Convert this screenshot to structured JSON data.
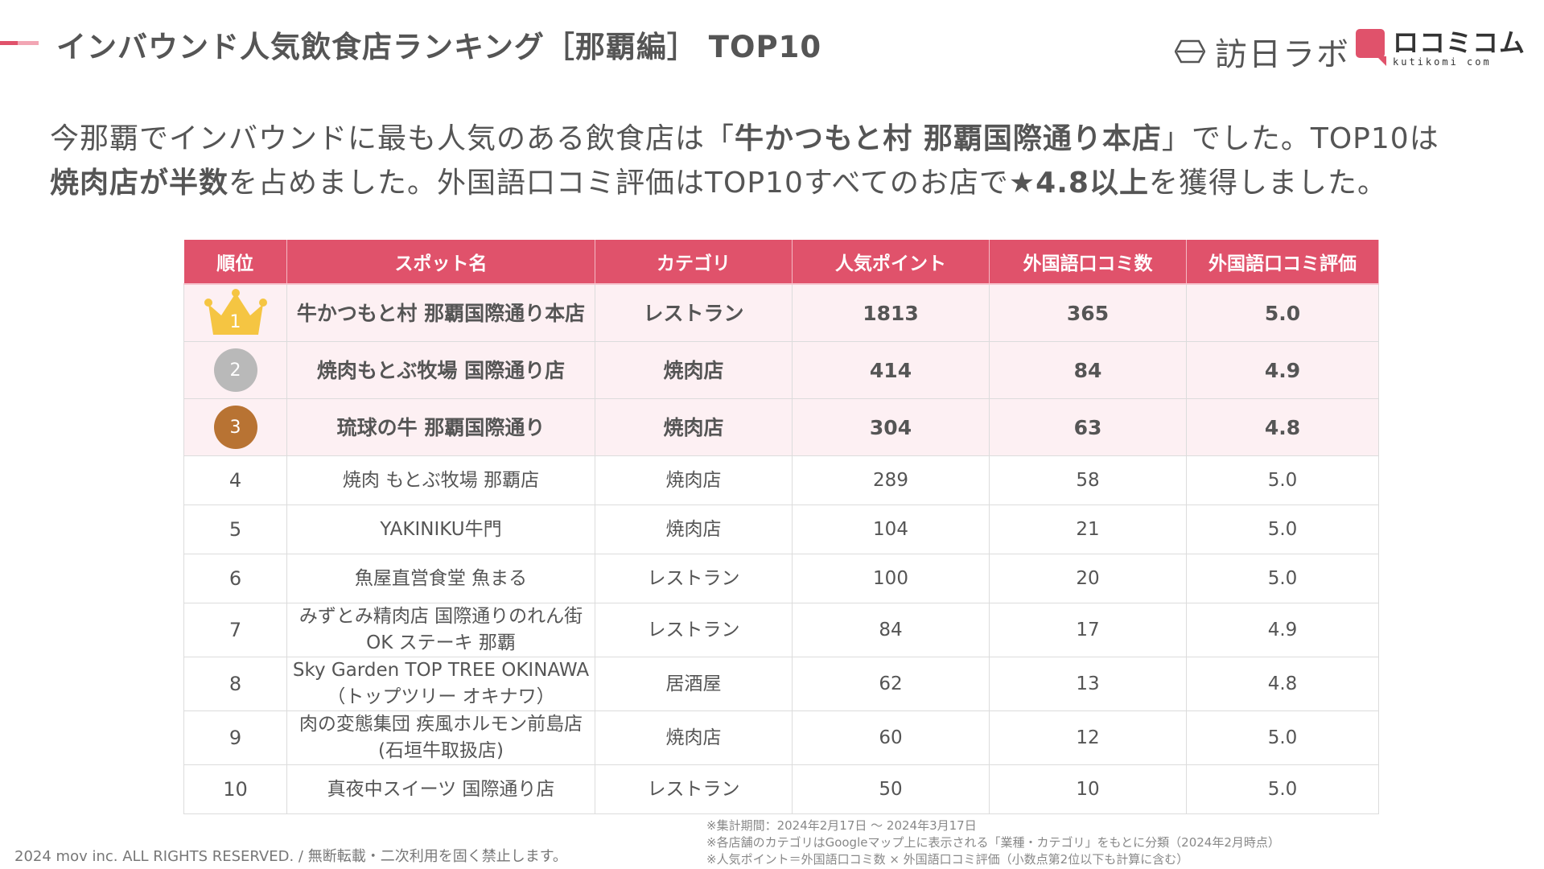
{
  "header": {
    "title": "インバウンド人気飲食店ランキング［那覇編］ TOP10",
    "logo_houjin": "訪日ラボ",
    "logo_kuchikomi_jp": "ロコミコム",
    "logo_kuchikomi_en": "kutikomi com",
    "accent_colors": [
      "#e0526b",
      "#f2a6b4"
    ]
  },
  "lead": {
    "p1": "今那覇でインバウンドに最も人気のある飲食店は「",
    "b1": "牛かつもと村 那覇国際通り本店",
    "p2": "」でした。TOP10は",
    "b2": "焼肉店が半数",
    "p3": "を占めました。外国語口コミ評価はTOP10すべてのお店で",
    "b3": "★4.8以上",
    "p4": "を獲得しました。"
  },
  "table": {
    "header_color": "#e0526b",
    "columns": [
      "順位",
      "スポット名",
      "カテゴリ",
      "人気ポイント",
      "外国語口コミ数",
      "外国語口コミ評価"
    ],
    "rows": [
      {
        "rank": "1",
        "name": "牛かつもと村 那覇国際通り本店",
        "name2": "",
        "category": "レストラン",
        "points": "1813",
        "reviews": "365",
        "rating": "5.0"
      },
      {
        "rank": "2",
        "name": "焼肉もとぶ牧場 国際通り店",
        "name2": "",
        "category": "焼肉店",
        "points": "414",
        "reviews": "84",
        "rating": "4.9"
      },
      {
        "rank": "3",
        "name": "琉球の牛 那覇国際通り",
        "name2": "",
        "category": "焼肉店",
        "points": "304",
        "reviews": "63",
        "rating": "4.8"
      },
      {
        "rank": "4",
        "name": "焼肉 もとぶ牧場 那覇店",
        "name2": "",
        "category": "焼肉店",
        "points": "289",
        "reviews": "58",
        "rating": "5.0"
      },
      {
        "rank": "5",
        "name": "YAKINIKU牛門",
        "name2": "",
        "category": "焼肉店",
        "points": "104",
        "reviews": "21",
        "rating": "5.0"
      },
      {
        "rank": "6",
        "name": "魚屋直営食堂 魚まる",
        "name2": "",
        "category": "レストラン",
        "points": "100",
        "reviews": "20",
        "rating": "5.0"
      },
      {
        "rank": "7",
        "name": "みずとみ精肉店 国際通りのれん街",
        "name2": "OK ステーキ 那覇",
        "category": "レストラン",
        "points": "84",
        "reviews": "17",
        "rating": "4.9"
      },
      {
        "rank": "8",
        "name": "Sky Garden TOP TREE OKINAWA",
        "name2": "（トップツリー オキナワ）",
        "category": "居酒屋",
        "points": "62",
        "reviews": "13",
        "rating": "4.8"
      },
      {
        "rank": "9",
        "name": "肉の変態集団 疾風ホルモン前島店",
        "name2": "(石垣牛取扱店)",
        "category": "焼肉店",
        "points": "60",
        "reviews": "12",
        "rating": "5.0"
      },
      {
        "rank": "10",
        "name": "真夜中スイーツ 国際通り店",
        "name2": "",
        "category": "レストラン",
        "points": "50",
        "reviews": "10",
        "rating": "5.0"
      }
    ]
  },
  "notes": [
    "※集計期間：2024年2月17日 〜 2024年3月17日",
    "※各店舗のカテゴリはGoogleマップ上に表示される「業種・カテゴリ」をもとに分類（2024年2月時点）",
    "※人気ポイント＝外国語口コミ数 × 外国語口コミ評価（小数点第2位以下も計算に含む）"
  ],
  "copyright": "2024 mov inc. ALL RIGHTS RESERVED. / 無断転載・二次利用を固く禁止します。"
}
